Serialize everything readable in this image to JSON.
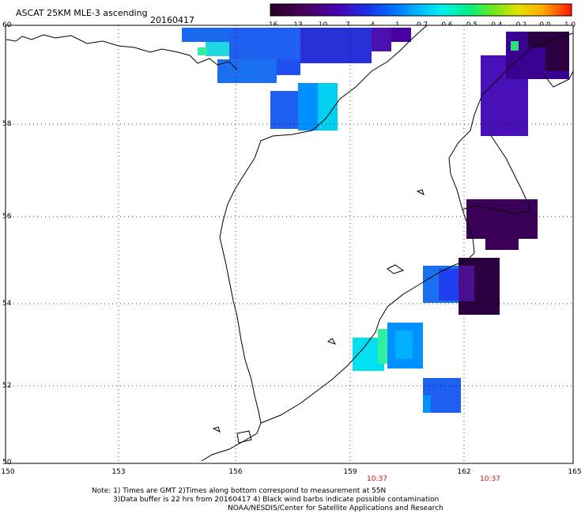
{
  "title": "ASCAT 25KM MLE-3 ascending",
  "date": "20160417",
  "colorbar": {
    "labels": [
      "-16",
      "-13",
      "-10",
      "-7",
      "-4",
      "-1",
      "-0.7",
      "-0.6",
      "-0.5",
      "-0.4",
      "-0.1",
      "0.0",
      "1.0"
    ],
    "colors": [
      "#2a0030",
      "#4a006a",
      "#4a00b0",
      "#2020e0",
      "#0050ff",
      "#0098ff",
      "#00d8ff",
      "#00f0c0",
      "#40e040",
      "#a0e000",
      "#f0e000",
      "#ff9000",
      "#ff2000"
    ]
  },
  "axes": {
    "lat_labels": [
      "60",
      "58",
      "56",
      "54",
      "52",
      "50"
    ],
    "lon_labels": [
      "150",
      "153",
      "156",
      "159",
      "162",
      "165"
    ],
    "pass_times": [
      "10:37",
      "10:37"
    ]
  },
  "notes": {
    "line1": "Note: 1) Times are GMT 2)Times along bottom correspond to measurement at 55N",
    "line2": "3)Data buffer is 22 hrs from 20160417 4) Black wind barbs indicate possible contamination",
    "line3": "NOAA/NESDIS/Center for Satellite Applications and Research"
  }
}
